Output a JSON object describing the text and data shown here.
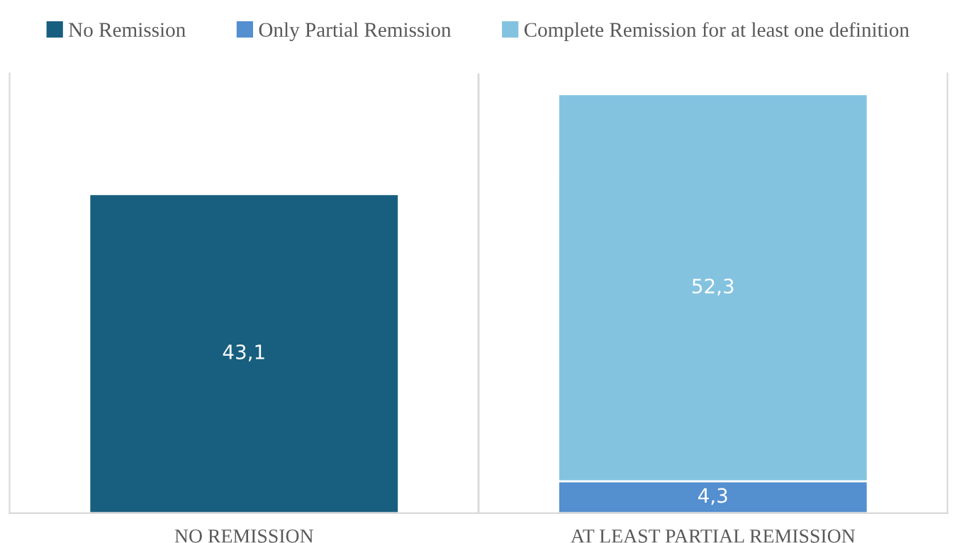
{
  "chart_data": {
    "type": "bar",
    "stacked": true,
    "categories": [
      "NO REMISSION",
      "AT LEAST PARTIAL REMISSION"
    ],
    "series": [
      {
        "name": "No Remission",
        "color": "#185f7f",
        "values": [
          43.1,
          null
        ],
        "value_labels": [
          "43,1",
          null
        ]
      },
      {
        "name": "Only Partial Remission",
        "color": "#548fcf",
        "values": [
          null,
          4.3
        ],
        "value_labels": [
          null,
          "4,3"
        ]
      },
      {
        "name": "Complete Remission for at least one definition",
        "color": "#84c3e0",
        "values": [
          null,
          52.3
        ],
        "value_labels": [
          null,
          "52,3"
        ]
      }
    ],
    "legend": "top",
    "grid": false
  }
}
